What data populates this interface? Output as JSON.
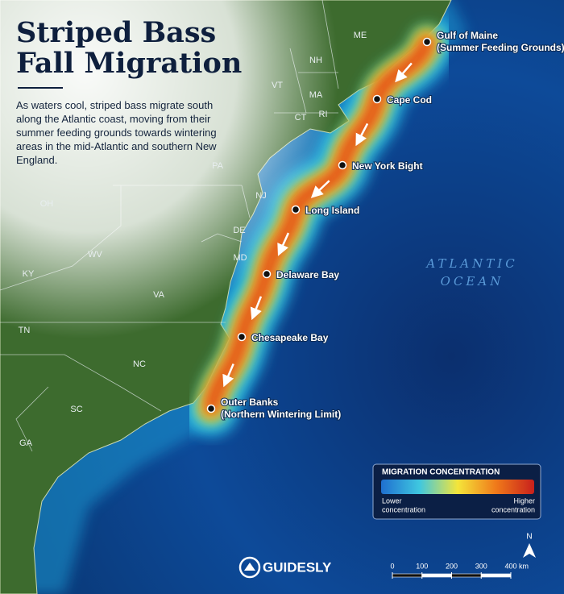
{
  "title_lines": [
    "Striped Bass",
    "Fall Migration"
  ],
  "description": "As waters cool, striped bass migrate south along the Atlantic coast, moving from their summer feeding grounds towards wintering areas in the mid-Atlantic and southern New England.",
  "state_labels": [
    "ME",
    "NH",
    "VT",
    "MA",
    "CT",
    "RI",
    "PA",
    "NJ",
    "OH",
    "DE",
    "MD",
    "WV",
    "KY",
    "VA",
    "TN",
    "NC",
    "SC",
    "GA"
  ],
  "ocean_label": [
    "ATLANTIC",
    "OCEAN"
  ],
  "locations": [
    {
      "name": "Gulf of Maine",
      "note": "(Summer Feeding Grounds)"
    },
    {
      "name": "Cape Cod"
    },
    {
      "name": "New York Bight"
    },
    {
      "name": "Long Island"
    },
    {
      "name": "Delaware Bay"
    },
    {
      "name": "Chesapeake Bay"
    },
    {
      "name": "Outer Banks",
      "note": "(Northern Wintering Limit)"
    }
  ],
  "legend": {
    "title": "MIGRATION CONCENTRATION",
    "low": [
      "Lower",
      "concentration"
    ],
    "high": [
      "Higher",
      "concentration"
    ]
  },
  "compass": "N",
  "scale_bar": {
    "ticks": [
      0,
      100,
      200,
      300,
      400
    ],
    "unit": "km"
  },
  "logo": "GUIDESLY"
}
